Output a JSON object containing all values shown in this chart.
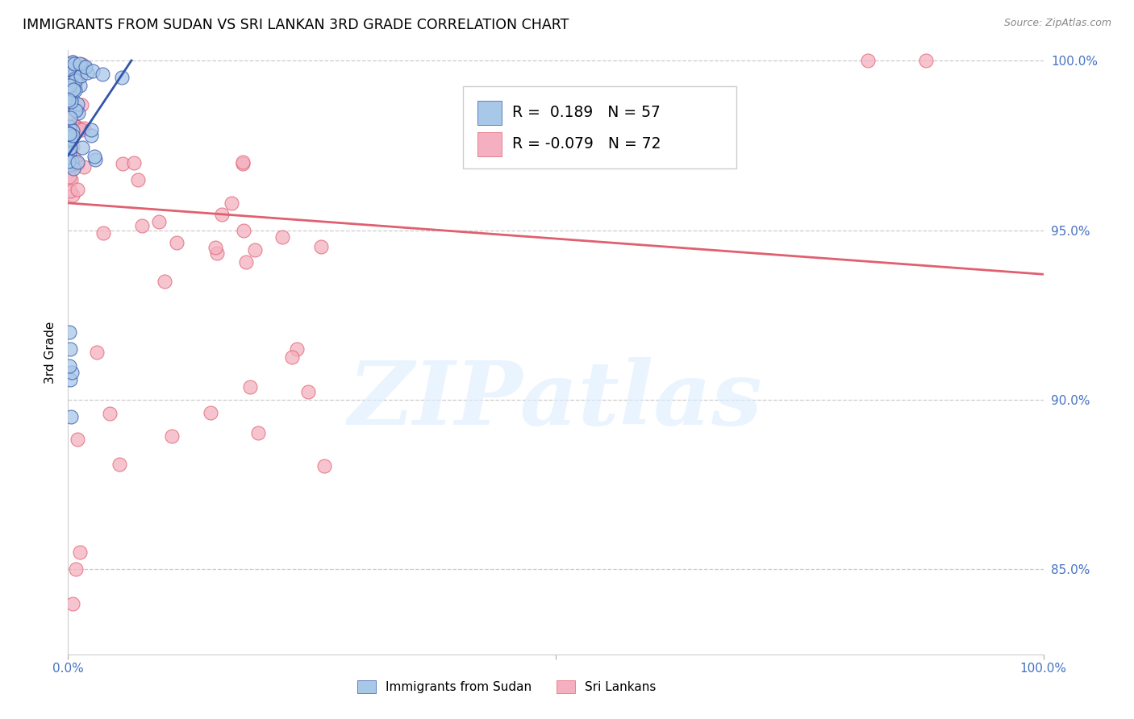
{
  "title": "IMMIGRANTS FROM SUDAN VS SRI LANKAN 3RD GRADE CORRELATION CHART",
  "source": "Source: ZipAtlas.com",
  "ylabel": "3rd Grade",
  "R_blue": 0.189,
  "N_blue": 57,
  "R_pink": -0.079,
  "N_pink": 72,
  "blue_color": "#a8c8e8",
  "pink_color": "#f4b0c0",
  "blue_line_color": "#3355aa",
  "pink_line_color": "#e06070",
  "legend_blue_label": "Immigrants from Sudan",
  "legend_pink_label": "Sri Lankans",
  "right_tick_color": "#4472c4",
  "watermark": "ZIPatlas",
  "xlim": [
    0.0,
    1.0
  ],
  "ylim": [
    0.825,
    1.003
  ],
  "blue_trend_x": [
    0.0,
    0.065
  ],
  "blue_trend_y": [
    0.972,
    1.0
  ],
  "pink_trend_x": [
    0.0,
    1.0
  ],
  "pink_trend_y": [
    0.958,
    0.937
  ]
}
